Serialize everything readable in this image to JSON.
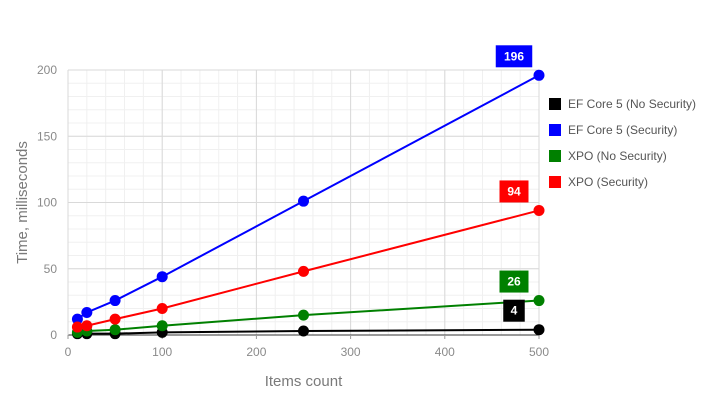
{
  "chart_data": {
    "type": "line",
    "title": "",
    "xlabel": "Items count",
    "ylabel": "Time, milliseconds",
    "xlim": [
      0,
      500
    ],
    "ylim": [
      0,
      200
    ],
    "x_ticks": [
      0,
      100,
      200,
      300,
      400,
      500
    ],
    "y_ticks": [
      0,
      50,
      100,
      150,
      200
    ],
    "grid": true,
    "legend_position": "right",
    "x": [
      10,
      20,
      50,
      100,
      250,
      500
    ],
    "series": [
      {
        "name": "EF Core 5 (No Security)",
        "color": "#000000",
        "values": [
          1,
          1,
          1,
          2,
          3,
          4
        ],
        "last_label": "4"
      },
      {
        "name": "EF Core 5 (Security)",
        "color": "#0000ff",
        "values": [
          12,
          17,
          26,
          44,
          101,
          196
        ],
        "last_label": "196"
      },
      {
        "name": "XPO (No Security)",
        "color": "#008000",
        "values": [
          2,
          3,
          4,
          7,
          15,
          26
        ],
        "last_label": "26"
      },
      {
        "name": "XPO (Security)",
        "color": "#ff0000",
        "values": [
          6,
          7,
          12,
          20,
          48,
          94
        ],
        "last_label": "94"
      }
    ]
  }
}
